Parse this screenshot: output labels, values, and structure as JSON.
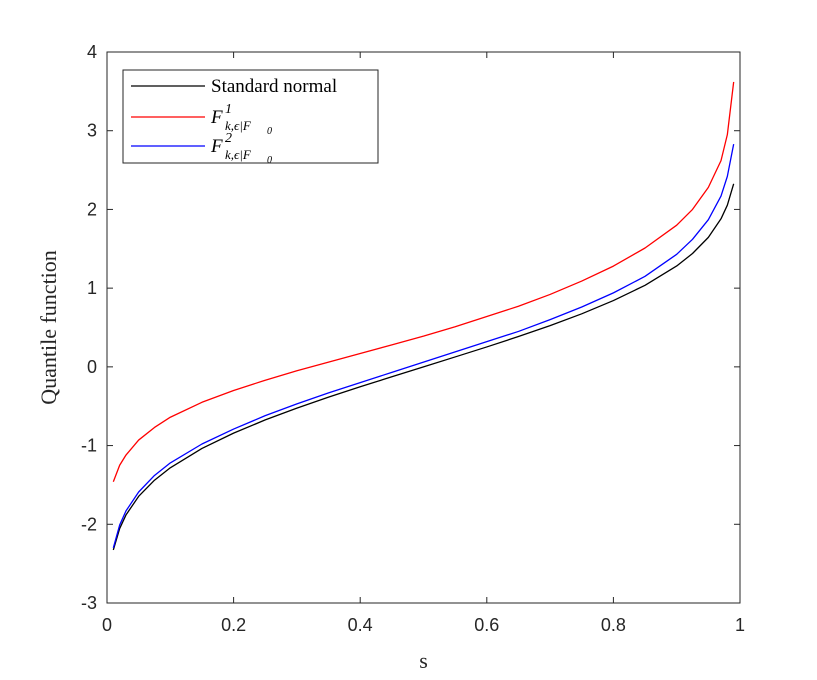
{
  "chart_data": {
    "type": "line",
    "xlabel": "s",
    "ylabel": "Quantile function",
    "xlim": [
      0,
      1
    ],
    "ylim": [
      -3,
      4
    ],
    "xticks": [
      0,
      0.2,
      0.4,
      0.6,
      0.8,
      1
    ],
    "xtick_labels": [
      "0",
      "0.2",
      "0.4",
      "0.6",
      "0.8",
      "1"
    ],
    "yticks": [
      -3,
      -2,
      -1,
      0,
      1,
      2,
      3,
      4
    ],
    "ytick_labels": [
      "-3",
      "-2",
      "-1",
      "0",
      "1",
      "2",
      "3",
      "4"
    ],
    "grid": false,
    "legend_position": "top-left",
    "x": [
      0.01,
      0.02,
      0.03,
      0.05,
      0.075,
      0.1,
      0.15,
      0.2,
      0.25,
      0.3,
      0.35,
      0.4,
      0.45,
      0.5,
      0.55,
      0.6,
      0.65,
      0.7,
      0.75,
      0.8,
      0.85,
      0.9,
      0.925,
      0.95,
      0.97,
      0.98,
      0.99
    ],
    "series": [
      {
        "name": "Standard normal",
        "color": "#000000",
        "values": [
          -2.326,
          -2.054,
          -1.881,
          -1.645,
          -1.44,
          -1.282,
          -1.036,
          -0.842,
          -0.674,
          -0.524,
          -0.385,
          -0.253,
          -0.126,
          0.0,
          0.126,
          0.253,
          0.385,
          0.524,
          0.674,
          0.842,
          1.036,
          1.282,
          1.44,
          1.645,
          1.881,
          2.054,
          2.326
        ]
      },
      {
        "name": "F^1_{k,ε|F0}",
        "color": "#ff0000",
        "values": [
          -1.46,
          -1.25,
          -1.12,
          -0.93,
          -0.77,
          -0.64,
          -0.45,
          -0.3,
          -0.17,
          -0.05,
          0.06,
          0.17,
          0.28,
          0.39,
          0.51,
          0.64,
          0.77,
          0.92,
          1.09,
          1.28,
          1.51,
          1.8,
          2.0,
          2.28,
          2.62,
          2.95,
          3.62
        ]
      },
      {
        "name": "F^2_{k,ε|F0}",
        "color": "#0000ff",
        "values": [
          -2.3,
          -2.01,
          -1.83,
          -1.59,
          -1.38,
          -1.22,
          -0.98,
          -0.79,
          -0.62,
          -0.47,
          -0.33,
          -0.2,
          -0.07,
          0.06,
          0.19,
          0.32,
          0.45,
          0.6,
          0.76,
          0.94,
          1.15,
          1.43,
          1.62,
          1.87,
          2.17,
          2.42,
          2.83
        ]
      }
    ],
    "legend": [
      {
        "text": "Standard normal",
        "color": "#000000"
      },
      {
        "base": "F",
        "sup": "1",
        "sub": "k,ϵ|F",
        "subsub": "0",
        "color": "#ff0000"
      },
      {
        "base": "F",
        "sup": "2",
        "sub": "k,ϵ|F",
        "subsub": "0",
        "color": "#0000ff"
      }
    ]
  }
}
